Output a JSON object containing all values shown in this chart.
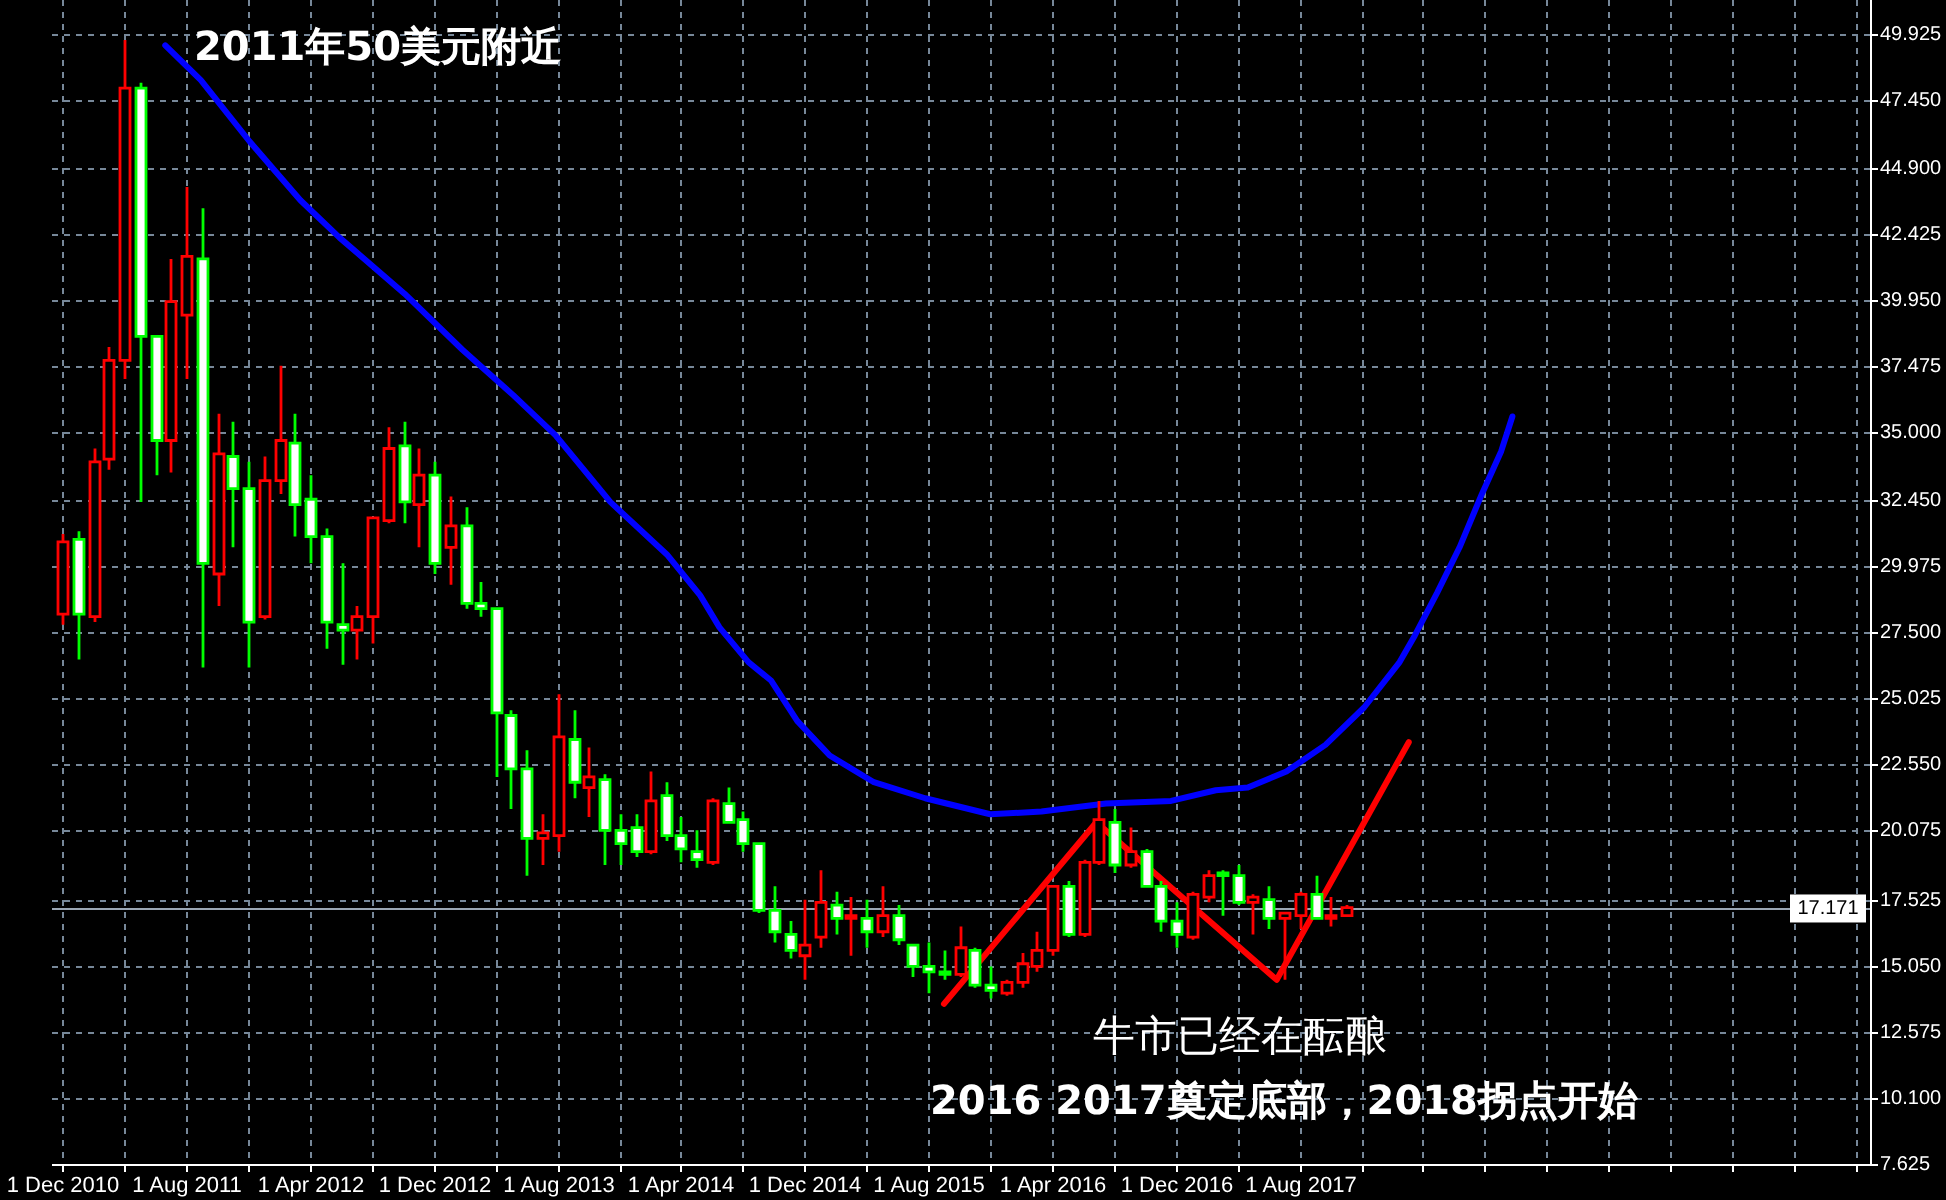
{
  "chart_data": {
    "type": "candlestick",
    "x": [
      "2010-12",
      "2011-01",
      "2011-02",
      "2011-03",
      "2011-04",
      "2011-05",
      "2011-06",
      "2011-07",
      "2011-08",
      "2011-09",
      "2011-10",
      "2011-11",
      "2011-12",
      "2012-01",
      "2012-02",
      "2012-03",
      "2012-04",
      "2012-05",
      "2012-06",
      "2012-07",
      "2012-08",
      "2012-09",
      "2012-10",
      "2012-11",
      "2012-12",
      "2013-01",
      "2013-02",
      "2013-03",
      "2013-04",
      "2013-05",
      "2013-06",
      "2013-07",
      "2013-08",
      "2013-09",
      "2013-10",
      "2013-11",
      "2013-12",
      "2014-01",
      "2014-02",
      "2014-03",
      "2014-04",
      "2014-05",
      "2014-06",
      "2014-07",
      "2014-08",
      "2014-09",
      "2014-10",
      "2014-11",
      "2014-12",
      "2015-01",
      "2015-02",
      "2015-03",
      "2015-04",
      "2015-05",
      "2015-06",
      "2015-07",
      "2015-08",
      "2015-09",
      "2015-10",
      "2015-11",
      "2015-12",
      "2016-01",
      "2016-02",
      "2016-03",
      "2016-04",
      "2016-05",
      "2016-06",
      "2016-07",
      "2016-08",
      "2016-09",
      "2016-10",
      "2016-11",
      "2016-12",
      "2017-01",
      "2017-02",
      "2017-03",
      "2017-04",
      "2017-05",
      "2017-06",
      "2017-07",
      "2017-08",
      "2017-09",
      "2017-10",
      "2017-11"
    ],
    "ohlc": [
      [
        28.2,
        31.2,
        27.8,
        30.9
      ],
      [
        31.0,
        31.3,
        26.5,
        28.2
      ],
      [
        28.1,
        34.4,
        27.9,
        33.9
      ],
      [
        34.0,
        38.2,
        33.6,
        37.7
      ],
      [
        37.7,
        49.7,
        37.0,
        47.9
      ],
      [
        47.9,
        48.1,
        32.4,
        38.6
      ],
      [
        38.6,
        38.6,
        33.4,
        34.7
      ],
      [
        34.7,
        41.5,
        33.5,
        39.9
      ],
      [
        39.4,
        44.2,
        37.0,
        41.6
      ],
      [
        41.5,
        43.4,
        26.2,
        30.1
      ],
      [
        29.7,
        35.7,
        28.5,
        34.2
      ],
      [
        34.1,
        35.4,
        30.7,
        32.9
      ],
      [
        32.9,
        33.9,
        26.2,
        27.9
      ],
      [
        28.1,
        34.1,
        28.0,
        33.2
      ],
      [
        33.2,
        37.5,
        32.7,
        34.7
      ],
      [
        34.6,
        35.7,
        31.1,
        32.3
      ],
      [
        32.5,
        33.4,
        30.1,
        31.1
      ],
      [
        31.1,
        31.4,
        26.9,
        27.9
      ],
      [
        27.8,
        30.1,
        26.3,
        27.6
      ],
      [
        27.6,
        28.5,
        26.5,
        28.1
      ],
      [
        28.1,
        31.8,
        27.1,
        31.8
      ],
      [
        31.7,
        35.2,
        31.6,
        34.4
      ],
      [
        34.5,
        35.4,
        31.6,
        32.4
      ],
      [
        32.3,
        34.4,
        30.7,
        33.4
      ],
      [
        33.4,
        33.9,
        29.7,
        30.1
      ],
      [
        30.7,
        32.6,
        29.3,
        31.5
      ],
      [
        31.5,
        32.2,
        28.4,
        28.6
      ],
      [
        28.6,
        29.4,
        28.1,
        28.4
      ],
      [
        28.4,
        28.4,
        22.1,
        24.5
      ],
      [
        24.4,
        24.6,
        20.9,
        22.4
      ],
      [
        22.4,
        23.1,
        18.4,
        19.8
      ],
      [
        19.8,
        20.7,
        18.8,
        20.0
      ],
      [
        19.9,
        25.2,
        19.3,
        23.6
      ],
      [
        23.5,
        24.6,
        21.3,
        21.9
      ],
      [
        21.7,
        23.2,
        20.6,
        22.1
      ],
      [
        22.0,
        22.2,
        18.8,
        20.1
      ],
      [
        20.1,
        20.7,
        18.8,
        19.6
      ],
      [
        20.2,
        20.7,
        19.1,
        19.3
      ],
      [
        19.3,
        22.3,
        19.2,
        21.2
      ],
      [
        21.4,
        21.9,
        19.7,
        19.9
      ],
      [
        19.9,
        20.6,
        18.9,
        19.4
      ],
      [
        19.3,
        20.1,
        18.7,
        19.0
      ],
      [
        18.9,
        21.3,
        18.8,
        21.2
      ],
      [
        21.1,
        21.7,
        20.4,
        20.4
      ],
      [
        20.5,
        20.8,
        19.3,
        19.6
      ],
      [
        19.6,
        19.6,
        17.0,
        17.1
      ],
      [
        17.1,
        18.0,
        15.9,
        16.3
      ],
      [
        16.2,
        16.7,
        15.3,
        15.6
      ],
      [
        15.4,
        17.5,
        14.5,
        15.8
      ],
      [
        16.1,
        18.6,
        15.7,
        17.4
      ],
      [
        17.3,
        17.8,
        16.2,
        16.8
      ],
      [
        16.8,
        17.6,
        15.4,
        16.9
      ],
      [
        16.8,
        17.5,
        15.7,
        16.3
      ],
      [
        16.3,
        18.0,
        16.1,
        16.9
      ],
      [
        16.9,
        17.3,
        15.8,
        16.0
      ],
      [
        15.8,
        15.8,
        14.6,
        15.0
      ],
      [
        15.0,
        15.9,
        14.0,
        14.8
      ],
      [
        14.8,
        15.6,
        14.5,
        14.7
      ],
      [
        14.7,
        16.5,
        14.6,
        15.7
      ],
      [
        15.6,
        15.7,
        14.2,
        14.3
      ],
      [
        14.3,
        15.0,
        13.8,
        14.1
      ],
      [
        14.0,
        14.5,
        13.9,
        14.4
      ],
      [
        14.4,
        15.5,
        14.2,
        15.1
      ],
      [
        15.0,
        16.3,
        14.8,
        15.6
      ],
      [
        15.6,
        18.0,
        15.4,
        18.0
      ],
      [
        18.0,
        18.2,
        16.1,
        16.2
      ],
      [
        16.2,
        19.0,
        16.1,
        18.9
      ],
      [
        18.9,
        21.2,
        18.8,
        20.5
      ],
      [
        20.4,
        20.9,
        18.5,
        18.8
      ],
      [
        18.8,
        20.2,
        18.7,
        19.3
      ],
      [
        19.3,
        19.4,
        18.0,
        18.0
      ],
      [
        18.0,
        18.2,
        16.3,
        16.7
      ],
      [
        16.7,
        17.4,
        15.7,
        16.2
      ],
      [
        16.1,
        17.8,
        16.0,
        17.7
      ],
      [
        17.6,
        18.6,
        17.4,
        18.4
      ],
      [
        18.5,
        18.6,
        16.9,
        18.4
      ],
      [
        18.4,
        18.8,
        17.3,
        17.4
      ],
      [
        17.4,
        17.7,
        16.2,
        17.6
      ],
      [
        17.5,
        18.0,
        16.4,
        16.8
      ],
      [
        16.8,
        17.0,
        14.5,
        17.0
      ],
      [
        16.9,
        17.8,
        16.4,
        17.7
      ],
      [
        17.7,
        18.4,
        16.8,
        16.8
      ],
      [
        16.8,
        17.6,
        16.5,
        16.9
      ],
      [
        16.9,
        17.3,
        16.9,
        17.2
      ]
    ],
    "colors": [
      "#ff0000",
      "#00ff00",
      "#ff0000",
      "#ff0000",
      "#ff0000",
      "#00ff00",
      "#00ff00",
      "#ff0000",
      "#ff0000",
      "#00ff00",
      "#ff0000",
      "#00ff00",
      "#00ff00",
      "#ff0000",
      "#ff0000",
      "#00ff00",
      "#00ff00",
      "#00ff00",
      "#00ff00",
      "#ff0000",
      "#ff0000",
      "#ff0000",
      "#00ff00",
      "#ff0000",
      "#00ff00",
      "#ff0000",
      "#00ff00",
      "#00ff00",
      "#00ff00",
      "#00ff00",
      "#00ff00",
      "#ff0000",
      "#ff0000",
      "#00ff00",
      "#ff0000",
      "#00ff00",
      "#00ff00",
      "#00ff00",
      "#ff0000",
      "#00ff00",
      "#00ff00",
      "#00ff00",
      "#ff0000",
      "#00ff00",
      "#00ff00",
      "#00ff00",
      "#00ff00",
      "#00ff00",
      "#ff0000",
      "#ff0000",
      "#00ff00",
      "#ff0000",
      "#00ff00",
      "#ff0000",
      "#00ff00",
      "#00ff00",
      "#00ff00",
      "#00ff00",
      "#ff0000",
      "#00ff00",
      "#00ff00",
      "#ff0000",
      "#ff0000",
      "#ff0000",
      "#ff0000",
      "#00ff00",
      "#ff0000",
      "#ff0000",
      "#00ff00",
      "#ff0000",
      "#00ff00",
      "#00ff00",
      "#00ff00",
      "#ff0000",
      "#ff0000",
      "#00ff00",
      "#00ff00",
      "#ff0000",
      "#00ff00",
      "#ff0000",
      "#ff0000",
      "#00ff00",
      "#ff0000",
      "#ff0000"
    ],
    "series": [
      {
        "type": "line",
        "color": "#0000ff",
        "x": [
          "2011-06-21",
          "2011-08-30",
          "2011-12-04",
          "2012-03-13",
          "2012-05-29",
          "2012-10-04",
          "2013-01-26",
          "2013-05-06",
          "2013-07-28",
          "2013-11-13",
          "2014-03-06",
          "2014-05-09",
          "2014-06-16",
          "2014-08-12",
          "2014-09-26",
          "2014-11-16",
          "2015-01-19",
          "2015-04-16",
          "2015-07-26",
          "2015-12-01",
          "2016-03-11",
          "2016-07-16",
          "2016-11-21",
          "2017-02-17",
          "2017-04-21",
          "2017-07-06",
          "2017-09-21",
          "2017-12-06",
          "2018-02-14",
          "2018-03-16",
          "2018-04-29",
          "2018-06-12",
          "2018-07-26",
          "2018-09-02",
          "2018-09-24"
        ],
        "values": [
          49.5,
          48.2,
          45.9,
          43.7,
          42.3,
          40.2,
          38.1,
          36.4,
          34.9,
          32.4,
          30.4,
          28.9,
          27.7,
          26.4,
          25.7,
          24.2,
          22.9,
          21.9,
          21.3,
          20.7,
          20.8,
          21.1,
          21.2,
          21.6,
          21.7,
          22.3,
          23.3,
          24.7,
          26.4,
          27.4,
          29.0,
          30.7,
          32.7,
          34.3,
          35.6
        ]
      },
      {
        "type": "line",
        "color": "#ff0000",
        "x": [
          "2015-09-01",
          "2016-06-27",
          "2017-06-17",
          "2018-03-04"
        ],
        "values": [
          13.6,
          20.4,
          14.5,
          23.4
        ]
      }
    ],
    "xlim": [
      "2010-11-10",
      "2020-08-28"
    ],
    "xticks": [
      {
        "value": "2010-12-01",
        "label": "1 Dec 2010"
      },
      {
        "value": "2011-04-01",
        "label": null
      },
      {
        "value": "2011-08-01",
        "label": "1 Aug 2011"
      },
      {
        "value": "2011-12-01",
        "label": null
      },
      {
        "value": "2012-04-01",
        "label": "1 Apr 2012"
      },
      {
        "value": "2012-08-01",
        "label": null
      },
      {
        "value": "2012-12-01",
        "label": "1 Dec 2012"
      },
      {
        "value": "2013-04-01",
        "label": null
      },
      {
        "value": "2013-08-01",
        "label": "1 Aug 2013"
      },
      {
        "value": "2013-12-01",
        "label": null
      },
      {
        "value": "2014-04-01",
        "label": "1 Apr 2014"
      },
      {
        "value": "2014-08-01",
        "label": null
      },
      {
        "value": "2014-12-01",
        "label": "1 Dec 2014"
      },
      {
        "value": "2015-04-01",
        "label": null
      },
      {
        "value": "2015-08-01",
        "label": "1 Aug 2015"
      },
      {
        "value": "2015-12-01",
        "label": null
      },
      {
        "value": "2016-04-01",
        "label": "1 Apr 2016"
      },
      {
        "value": "2016-08-01",
        "label": null
      },
      {
        "value": "2016-12-01",
        "label": "1 Dec 2016"
      },
      {
        "value": "2017-04-01",
        "label": null
      },
      {
        "value": "2017-08-01",
        "label": "1 Aug 2017"
      },
      {
        "value": "2017-12-01",
        "label": null
      },
      {
        "value": "2018-04-01",
        "label": null
      },
      {
        "value": "2018-08-01",
        "label": null
      },
      {
        "value": "2018-12-01",
        "label": null
      },
      {
        "value": "2019-04-01",
        "label": null
      },
      {
        "value": "2019-08-01",
        "label": null
      },
      {
        "value": "2019-12-01",
        "label": null
      },
      {
        "value": "2020-04-01",
        "label": null
      },
      {
        "value": "2020-08-01",
        "label": null
      }
    ],
    "ylim": [
      7.6,
      51.2
    ],
    "yticks": [
      7.625,
      {
        "value": 10.1,
        "label": "10.100"
      },
      12.575,
      {
        "value": 15.05,
        "label": "15.050"
      },
      17.525,
      20.075,
      {
        "value": 22.55,
        "label": "22.550"
      },
      25.025,
      {
        "value": 27.5,
        "label": "27.500"
      },
      29.975,
      {
        "value": 32.45,
        "label": "32.450"
      },
      {
        "value": 35,
        "label": "35.000"
      },
      37.475,
      {
        "value": 39.95,
        "label": "39.950"
      },
      42.425,
      {
        "value": 44.9,
        "label": "44.900"
      },
      {
        "value": 47.45,
        "label": "47.450"
      },
      49.925
    ],
    "grid": true,
    "ref_lines": [
      {
        "axis": "y",
        "value": 17.171,
        "label": "17.171",
        "color": "#9aa6b4"
      }
    ],
    "annotations": [
      "2011年50美元附近",
      "牛市已经在酝酿",
      "2016 2017奠定底部，2018拐点开始"
    ]
  }
}
